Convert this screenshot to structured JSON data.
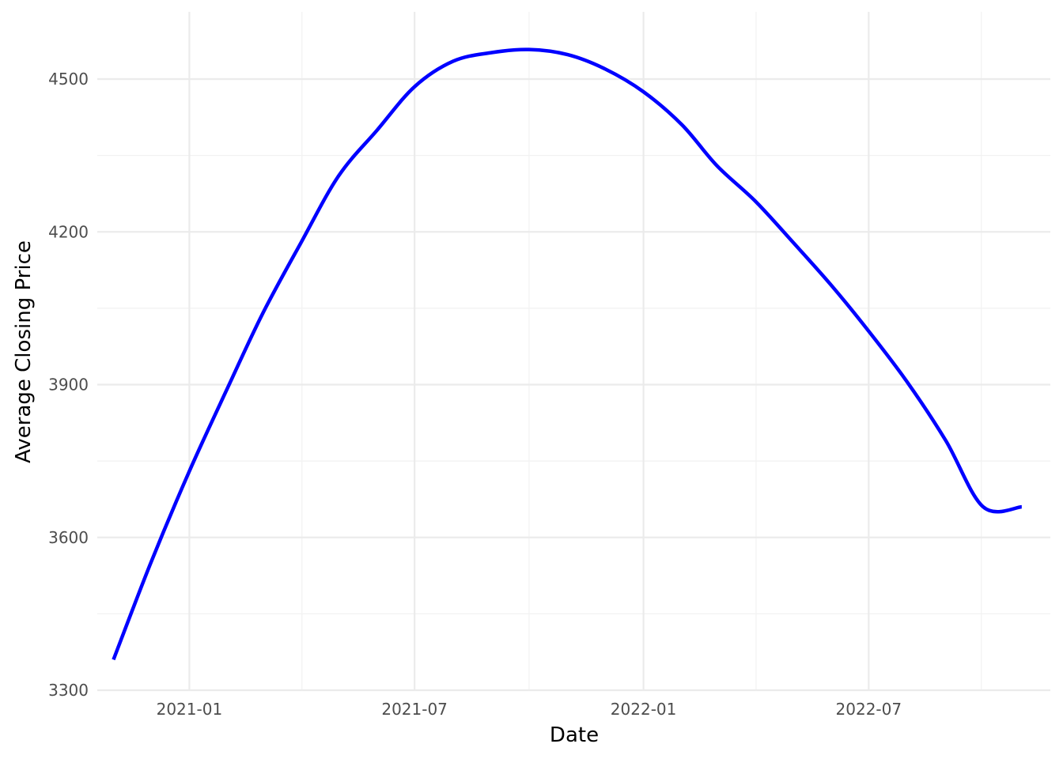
{
  "chart_data": {
    "type": "line",
    "title": "",
    "xlabel": "Date",
    "ylabel": "Average Closing Price",
    "x_ticks": [
      "2021-01",
      "2021-07",
      "2022-01",
      "2022-07"
    ],
    "y_ticks": [
      3300,
      3600,
      3900,
      4200,
      4500
    ],
    "xlim": [
      "2020-10-19",
      "2022-11-24"
    ],
    "ylim": [
      3300,
      4632
    ],
    "grid": true,
    "legend": "none",
    "colors": {
      "line": "#0000ff",
      "grid": "#ebebeb",
      "background": "#ffffff"
    },
    "series": [
      {
        "x": [
          "2020-11-01",
          "2020-12-01",
          "2021-01-01",
          "2021-02-01",
          "2021-03-01",
          "2021-04-01",
          "2021-05-01",
          "2021-06-01",
          "2021-07-01",
          "2021-08-01",
          "2021-09-01",
          "2021-10-01",
          "2021-11-01",
          "2021-12-01",
          "2022-01-01",
          "2022-02-01",
          "2022-03-01",
          "2022-04-01",
          "2022-05-01",
          "2022-06-01",
          "2022-07-01",
          "2022-08-01",
          "2022-09-01",
          "2022-10-01",
          "2022-11-01"
        ],
        "y": [
          3360,
          3550,
          3730,
          3895,
          4040,
          4180,
          4310,
          4400,
          4485,
          4535,
          4552,
          4558,
          4548,
          4520,
          4475,
          4410,
          4330,
          4260,
          4180,
          4095,
          4005,
          3905,
          3790,
          3660,
          3660
        ]
      }
    ]
  }
}
